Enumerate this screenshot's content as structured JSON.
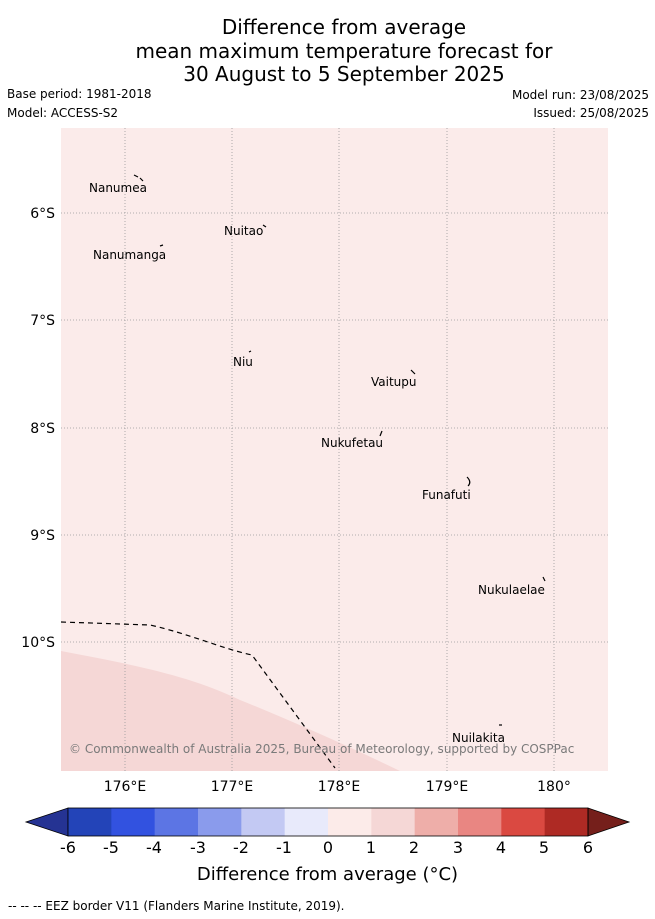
{
  "title": {
    "line1": "Difference from average",
    "line2": "mean maximum temperature forecast for",
    "line3": "30 August to 5 September 2025"
  },
  "meta": {
    "base_period": "Base period: 1981-2018",
    "model": "Model: ACCESS-S2",
    "model_run": "Model run: 23/08/2025",
    "issued": "Issued: 25/08/2025"
  },
  "map": {
    "lon_range": [
      175.45,
      180.5
    ],
    "lat_range": [
      -11.27,
      -5.3
    ],
    "background_anomaly_color": "#fbebea",
    "warmer_anomaly_color": "#f5d7d6",
    "grid": true,
    "lon_labels": [
      "176°E",
      "177°E",
      "178°E",
      "179°E",
      "180°"
    ],
    "lat_labels": [
      "6°S",
      "7°S",
      "8°S",
      "9°S",
      "10°S"
    ],
    "places": [
      {
        "name": "Nanumea"
      },
      {
        "name": "Nuitao"
      },
      {
        "name": "Nanumanga"
      },
      {
        "name": "Niu"
      },
      {
        "name": "Vaitupu"
      },
      {
        "name": "Nukufetau"
      },
      {
        "name": "Funafuti"
      },
      {
        "name": "Nukulaelae"
      },
      {
        "name": "Nuilakita"
      }
    ],
    "copyright": "© Commonwealth of Australia 2025, Bureau of Meteorology, supported by COSPPac"
  },
  "colorbar": {
    "ticks": [
      "-6",
      "-5",
      "-4",
      "-3",
      "-2",
      "-1",
      "0",
      "1",
      "2",
      "3",
      "4",
      "5",
      "6"
    ],
    "colors": [
      "#253393",
      "#2344b8",
      "#3252e0",
      "#5c75e4",
      "#8a9bec",
      "#c3c9f3",
      "#e8eafb",
      "#fcebe9",
      "#f5d7d6",
      "#eeaea9",
      "#e98682",
      "#da4941",
      "#ae2a24",
      "#751f1b"
    ],
    "label": "Difference from average (°C)"
  },
  "footer": {
    "legend_line": "--  --  -- EEZ border V11 (Flanders Marine Institute, 2019)."
  }
}
